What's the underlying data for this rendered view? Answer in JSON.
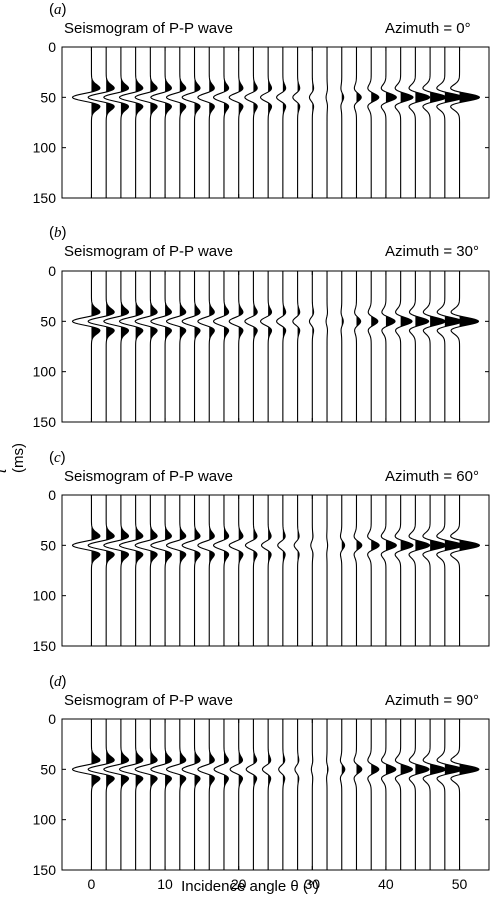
{
  "figure": {
    "ylabel_var": "t",
    "ylabel_unit": "(ms)",
    "xlabel": "Incidence angle θ (°)"
  },
  "chart_data": [
    {
      "type": "seismogram",
      "panel_label": "a",
      "title": "Seismogram of P-P wave",
      "azimuth_label": "Azimuth = 0°",
      "azimuth_deg": 0,
      "xlabel": "Incidence angle θ (°)",
      "ylabel": "t (ms)",
      "xlim": [
        -4,
        54
      ],
      "ylim": [
        150,
        0
      ],
      "xticks": [
        0,
        10,
        20,
        30,
        40,
        50
      ],
      "yticks": [
        0,
        50,
        100,
        150
      ],
      "trace_angles": [
        0,
        2,
        4,
        6,
        8,
        10,
        12,
        14,
        16,
        18,
        20,
        22,
        24,
        26,
        28,
        30,
        32,
        34,
        36,
        38,
        40,
        42,
        44,
        46,
        48,
        50
      ],
      "amplitudes": [
        -1.0,
        -0.95,
        -0.9,
        -0.85,
        -0.8,
        -0.75,
        -0.7,
        -0.65,
        -0.6,
        -0.55,
        -0.5,
        -0.45,
        -0.4,
        -0.33,
        -0.25,
        -0.15,
        -0.05,
        0.1,
        0.25,
        0.4,
        0.55,
        0.65,
        0.75,
        0.85,
        0.95,
        1.05
      ],
      "event_time_ms": 50
    },
    {
      "type": "seismogram",
      "panel_label": "b",
      "title": "Seismogram of P-P wave",
      "azimuth_label": "Azimuth = 30°",
      "azimuth_deg": 30,
      "xlabel": "Incidence angle θ (°)",
      "ylabel": "t (ms)",
      "xlim": [
        -4,
        54
      ],
      "ylim": [
        150,
        0
      ],
      "xticks": [
        0,
        10,
        20,
        30,
        40,
        50
      ],
      "yticks": [
        0,
        50,
        100,
        150
      ],
      "trace_angles": [
        0,
        2,
        4,
        6,
        8,
        10,
        12,
        14,
        16,
        18,
        20,
        22,
        24,
        26,
        28,
        30,
        32,
        34,
        36,
        38,
        40,
        42,
        44,
        46,
        48,
        50
      ],
      "amplitudes": [
        -1.0,
        -0.95,
        -0.9,
        -0.85,
        -0.8,
        -0.75,
        -0.7,
        -0.65,
        -0.6,
        -0.55,
        -0.5,
        -0.45,
        -0.4,
        -0.33,
        -0.25,
        -0.15,
        -0.05,
        0.08,
        0.22,
        0.35,
        0.48,
        0.6,
        0.7,
        0.8,
        0.9,
        1.0
      ],
      "event_time_ms": 50
    },
    {
      "type": "seismogram",
      "panel_label": "c",
      "title": "Seismogram of P-P wave",
      "azimuth_label": "Azimuth = 60°",
      "azimuth_deg": 60,
      "xlabel": "Incidence angle θ (°)",
      "ylabel": "t (ms)",
      "xlim": [
        -4,
        54
      ],
      "ylim": [
        150,
        0
      ],
      "xticks": [
        0,
        10,
        20,
        30,
        40,
        50
      ],
      "yticks": [
        0,
        50,
        100,
        150
      ],
      "trace_angles": [
        0,
        2,
        4,
        6,
        8,
        10,
        12,
        14,
        16,
        18,
        20,
        22,
        24,
        26,
        28,
        30,
        32,
        34,
        36,
        38,
        40,
        42,
        44,
        46,
        48,
        50
      ],
      "amplitudes": [
        -1.0,
        -0.95,
        -0.9,
        -0.85,
        -0.8,
        -0.75,
        -0.7,
        -0.65,
        -0.6,
        -0.55,
        -0.5,
        -0.42,
        -0.35,
        -0.27,
        -0.18,
        -0.08,
        0.03,
        0.15,
        0.28,
        0.42,
        0.55,
        0.65,
        0.75,
        0.85,
        0.95,
        1.05
      ],
      "event_time_ms": 50
    },
    {
      "type": "seismogram",
      "panel_label": "d",
      "title": "Seismogram of P-P wave",
      "azimuth_label": "Azimuth = 90°",
      "azimuth_deg": 90,
      "xlabel": "Incidence angle θ (°)",
      "ylabel": "t (ms)",
      "xlim": [
        -4,
        54
      ],
      "ylim": [
        150,
        0
      ],
      "xticks": [
        0,
        10,
        20,
        30,
        40,
        50
      ],
      "yticks": [
        0,
        50,
        100,
        150
      ],
      "trace_angles": [
        0,
        2,
        4,
        6,
        8,
        10,
        12,
        14,
        16,
        18,
        20,
        22,
        24,
        26,
        28,
        30,
        32,
        34,
        36,
        38,
        40,
        42,
        44,
        46,
        48,
        50
      ],
      "amplitudes": [
        -1.0,
        -0.95,
        -0.9,
        -0.85,
        -0.8,
        -0.75,
        -0.7,
        -0.65,
        -0.6,
        -0.52,
        -0.45,
        -0.38,
        -0.3,
        -0.22,
        -0.14,
        -0.05,
        0.05,
        0.16,
        0.28,
        0.4,
        0.52,
        0.62,
        0.72,
        0.82,
        0.92,
        1.02
      ],
      "event_time_ms": 50
    }
  ]
}
